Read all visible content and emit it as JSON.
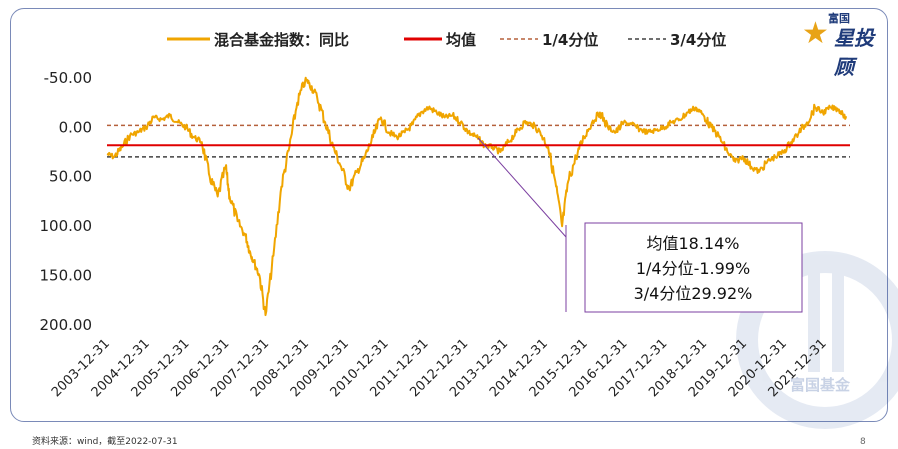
{
  "footer": {
    "source": "资料来源：wind，截至2022-07-31",
    "page": "8"
  },
  "logo": {
    "brand": "富国",
    "mark": "星投顾",
    "watermark": "富国基金"
  },
  "colors": {
    "series": "#f0a500",
    "mean": "#e00000",
    "q1": "#b5603b",
    "q3": "#404040",
    "annot": "#7b3fa0"
  },
  "chart_data": {
    "type": "line",
    "title": "",
    "y_reversed": true,
    "ylim": [
      -65,
      195
    ],
    "yticks": [
      "-50.00",
      "0.00",
      "50.00",
      "100.00",
      "150.00",
      "200.00"
    ],
    "ytick_values": [
      -50,
      0,
      50,
      100,
      150,
      200
    ],
    "x_tick_labels": [
      "2003-12-31",
      "2004-12-31",
      "2005-12-31",
      "2006-12-31",
      "2007-12-31",
      "2008-12-31",
      "2009-12-31",
      "2010-12-31",
      "2011-12-31",
      "2012-12-31",
      "2013-12-31",
      "2014-12-31",
      "2015-12-31",
      "2016-12-31",
      "2017-12-31",
      "2018-12-31",
      "2019-12-31",
      "2020-12-31",
      "2021-12-31"
    ],
    "xlim": [
      2003.92,
      2022.58
    ],
    "legend": [
      "混合基金指数：同比",
      "均值",
      "1/4分位",
      "3/4分位"
    ],
    "legend_position": "top",
    "reference_lines": {
      "mean": 18.14,
      "q1": -1.99,
      "q3": 29.92
    },
    "annotation": [
      "均值18.14%",
      "1/4分位-1.99%",
      "3/4分位29.92%"
    ],
    "series": [
      {
        "name": "混合基金指数：同比",
        "x": [
          2003.92,
          2004.1,
          2004.3,
          2004.5,
          2004.7,
          2004.9,
          2005.1,
          2005.3,
          2005.5,
          2005.7,
          2005.9,
          2006.1,
          2006.3,
          2006.5,
          2006.7,
          2006.9,
          2007.0,
          2007.2,
          2007.4,
          2007.5,
          2007.6,
          2007.75,
          2007.9,
          2008.1,
          2008.3,
          2008.5,
          2008.7,
          2008.9,
          2009.0,
          2009.2,
          2009.4,
          2009.6,
          2009.8,
          2010.0,
          2010.2,
          2010.4,
          2010.6,
          2010.8,
          2011.0,
          2011.2,
          2011.4,
          2011.6,
          2011.8,
          2012.0,
          2012.2,
          2012.4,
          2012.6,
          2012.8,
          2013.0,
          2013.2,
          2013.4,
          2013.6,
          2013.8,
          2014.0,
          2014.2,
          2014.4,
          2014.6,
          2014.8,
          2015.0,
          2015.2,
          2015.35,
          2015.5,
          2015.7,
          2015.9,
          2016.1,
          2016.3,
          2016.5,
          2016.7,
          2016.9,
          2017.1,
          2017.3,
          2017.5,
          2017.7,
          2017.9,
          2018.1,
          2018.3,
          2018.5,
          2018.7,
          2018.9,
          2019.1,
          2019.3,
          2019.5,
          2019.7,
          2019.9,
          2020.1,
          2020.3,
          2020.5,
          2020.7,
          2020.9,
          2021.1,
          2021.3,
          2021.5,
          2021.7,
          2021.9,
          2022.1,
          2022.3,
          2022.5
        ],
        "values": [
          27,
          30,
          20,
          8,
          5,
          0,
          -10,
          -8,
          -12,
          -5,
          0,
          10,
          15,
          50,
          70,
          40,
          70,
          95,
          110,
          125,
          135,
          150,
          190,
          130,
          60,
          20,
          -25,
          -48,
          -45,
          -30,
          -5,
          20,
          40,
          62,
          45,
          30,
          10,
          -10,
          5,
          10,
          5,
          -3,
          -15,
          -20,
          -15,
          -10,
          -12,
          -5,
          5,
          10,
          18,
          20,
          25,
          15,
          5,
          -5,
          -3,
          5,
          20,
          60,
          100,
          55,
          30,
          10,
          -5,
          -15,
          0,
          5,
          -5,
          -3,
          2,
          5,
          3,
          0,
          -5,
          -8,
          -15,
          -20,
          -12,
          0,
          10,
          25,
          35,
          30,
          40,
          45,
          35,
          30,
          25,
          15,
          5,
          -5,
          -20,
          -15,
          -20,
          -18,
          -10
        ]
      }
    ]
  }
}
